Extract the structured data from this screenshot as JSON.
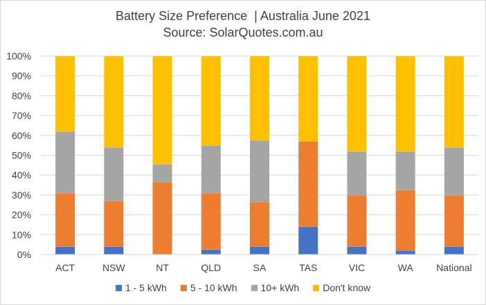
{
  "chart_data": {
    "type": "bar",
    "stacked": true,
    "title": "Battery Size Preference  | Australia June 2021",
    "subtitle": "Source: SolarQuotes.com.au",
    "categories": [
      "ACT",
      "NSW",
      "NT",
      "QLD",
      "SA",
      "TAS",
      "VIC",
      "WA",
      "National"
    ],
    "series": [
      {
        "name": "1 - 5 kWh",
        "color": "#4472C4",
        "values": [
          4,
          4,
          0,
          2.5,
          4,
          14,
          4,
          2,
          4
        ]
      },
      {
        "name": "5 - 10 kWh",
        "color": "#ED7D31",
        "values": [
          27,
          23,
          36.5,
          28.5,
          22.5,
          43,
          26,
          30.5,
          26
        ]
      },
      {
        "name": "10+ kWh",
        "color": "#A5A5A5",
        "values": [
          31,
          27,
          9,
          24,
          31,
          0,
          22,
          19.5,
          24
        ]
      },
      {
        "name": "Don't know",
        "color": "#FFC000",
        "values": [
          38,
          46,
          54.5,
          45,
          42.5,
          43,
          48,
          48,
          46
        ]
      }
    ],
    "ylim": [
      0,
      100
    ],
    "yticks": [
      "0%",
      "10%",
      "20%",
      "30%",
      "40%",
      "50%",
      "60%",
      "70%",
      "80%",
      "90%",
      "100%"
    ],
    "grid": true,
    "legend_position": "bottom"
  }
}
